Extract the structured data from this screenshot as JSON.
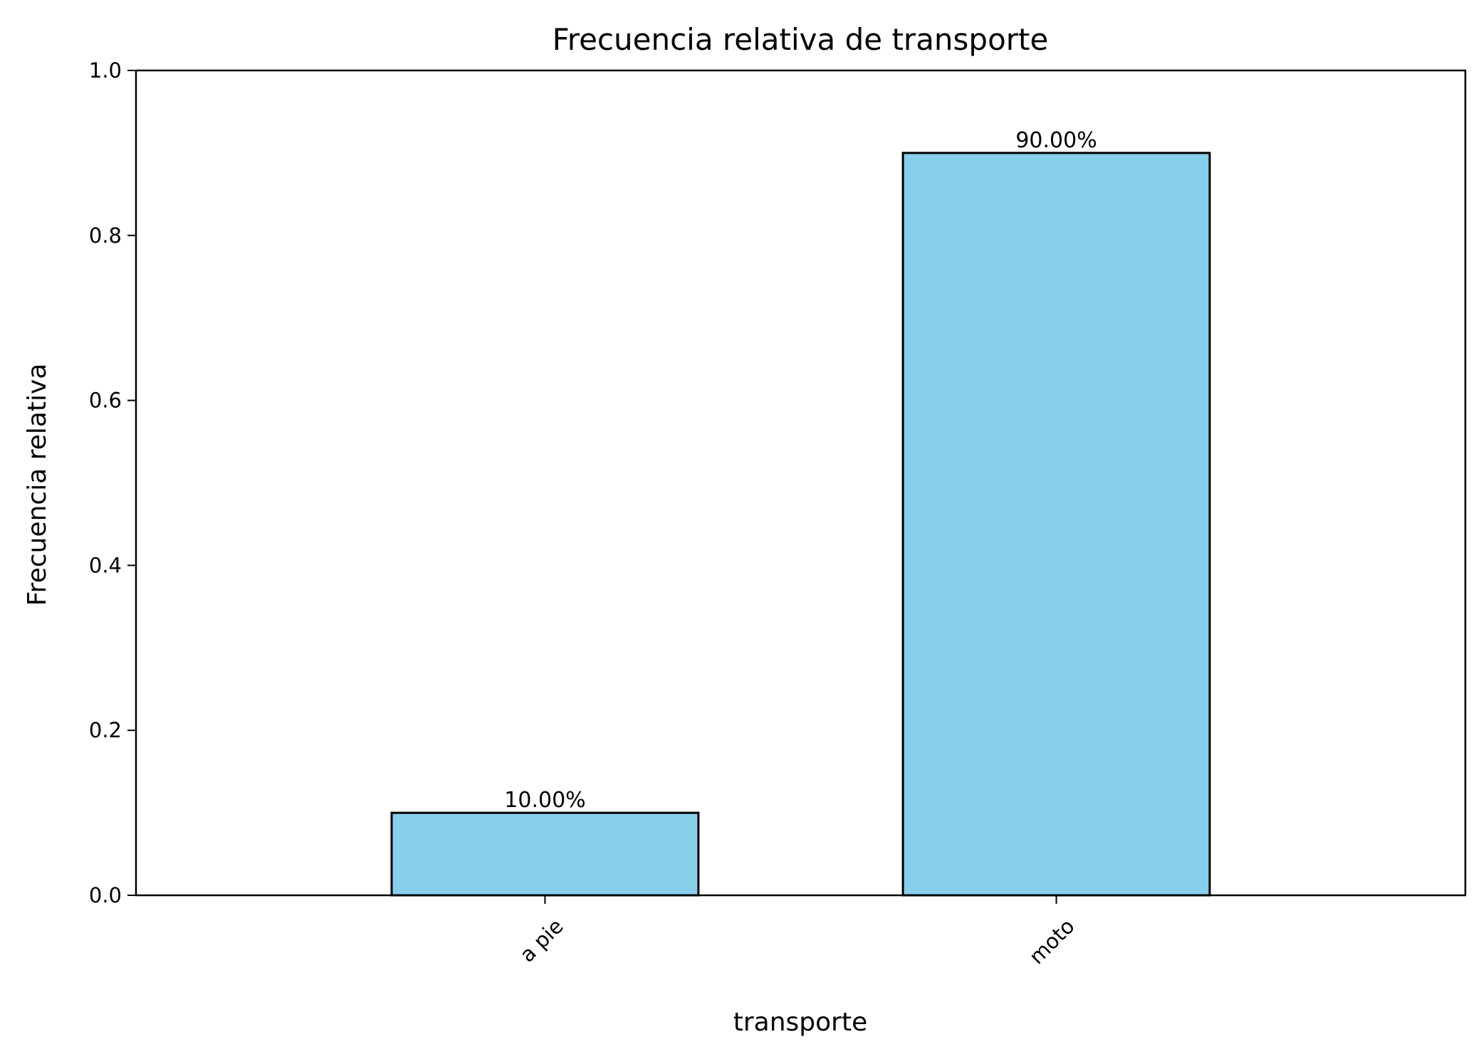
{
  "chart_data": {
    "type": "bar",
    "title": "Frecuencia relativa de transporte",
    "xlabel": "transporte",
    "ylabel": "Frecuencia relativa",
    "categories": [
      "a pie",
      "moto"
    ],
    "values": [
      0.1,
      0.9
    ],
    "value_labels": [
      "10.00%",
      "90.00%"
    ],
    "ylim": [
      0,
      1.0
    ],
    "yticks": [
      "0.0",
      "0.2",
      "0.4",
      "0.6",
      "0.8",
      "1.0"
    ],
    "ytick_values": [
      0,
      0.2,
      0.4,
      0.6,
      0.8,
      1.0
    ],
    "grid": false,
    "bar_color": "#87CEEB",
    "edge_color": "#000000",
    "xtick_rotation_deg": 45
  }
}
